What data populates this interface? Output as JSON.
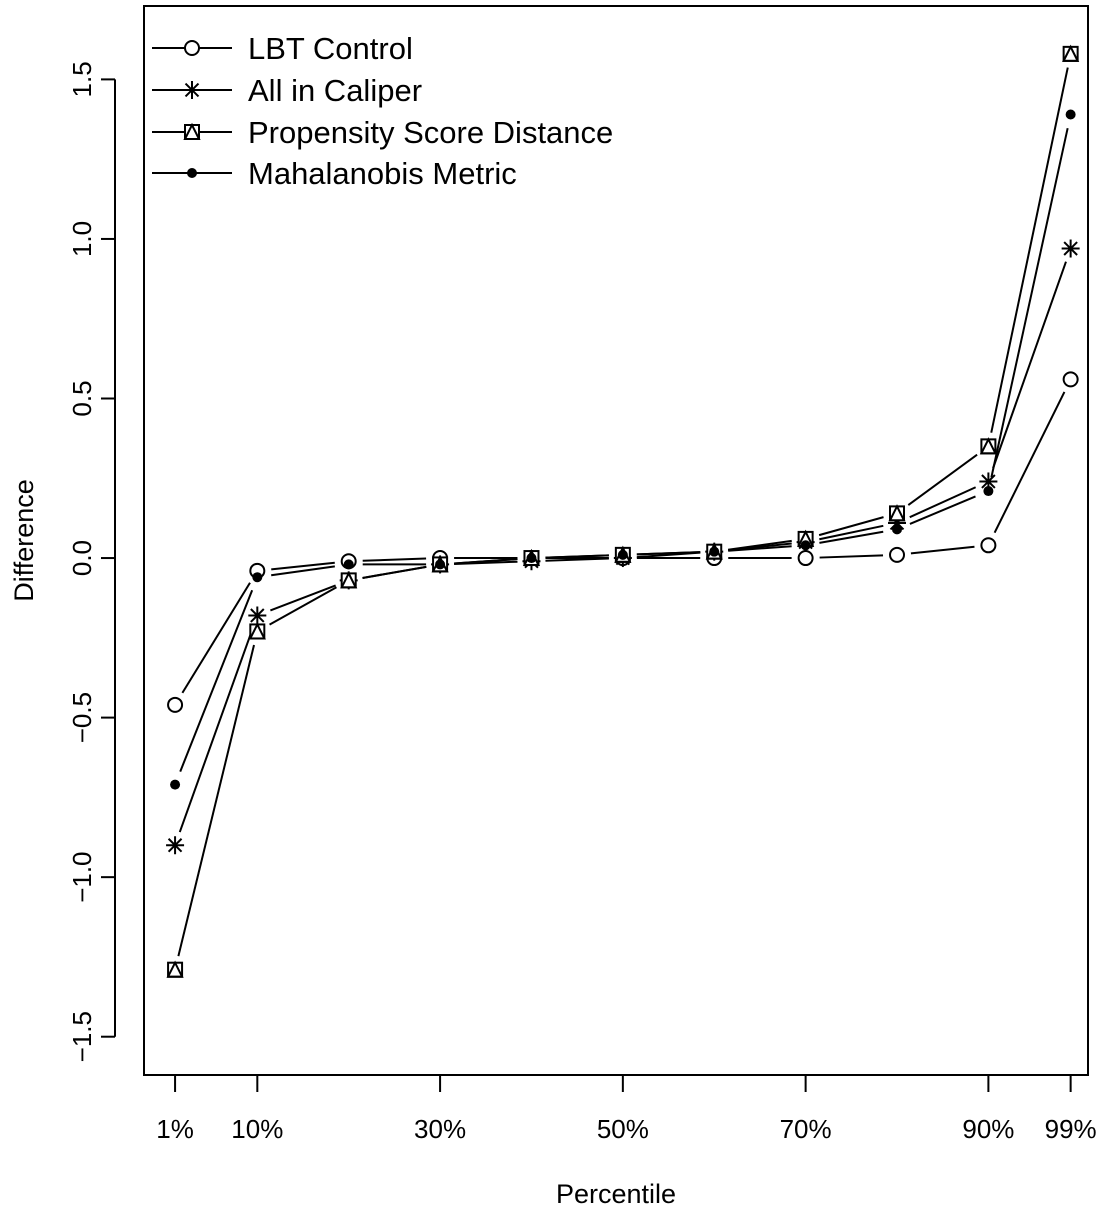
{
  "chart_data": {
    "type": "line",
    "title": "",
    "xlabel": "Percentile",
    "ylabel": "Difference",
    "x": [
      1,
      10,
      20,
      30,
      40,
      50,
      60,
      70,
      80,
      90,
      99
    ],
    "xticks": [
      1,
      10,
      30,
      50,
      70,
      90,
      99
    ],
    "xtick_labels": [
      "1%",
      "10%",
      "30%",
      "50%",
      "70%",
      "90%",
      "99%"
    ],
    "yticks": [
      -1.5,
      -1.0,
      -0.5,
      0.0,
      0.5,
      1.0,
      1.5
    ],
    "ytick_labels": [
      "−1.5",
      "−1.0",
      "−0.5",
      "0.0",
      "0.5",
      "1.0",
      "1.5"
    ],
    "xlim": [
      -2.4,
      100.9
    ],
    "ylim": [
      -1.62,
      1.73
    ],
    "grid": false,
    "legend_position": "top-left",
    "series": [
      {
        "name": "LBT Control",
        "marker": "open-circle",
        "values": [
          -0.46,
          -0.04,
          -0.01,
          0.0,
          0.0,
          0.0,
          0.0,
          0.0,
          0.01,
          0.04,
          0.56
        ]
      },
      {
        "name": "All in Caliper",
        "marker": "asterisk",
        "values": [
          -0.9,
          -0.18,
          -0.07,
          -0.02,
          -0.01,
          0.0,
          0.02,
          0.05,
          0.11,
          0.24,
          0.97
        ]
      },
      {
        "name": "Propensity Score Distance",
        "marker": "square-triangle",
        "values": [
          -1.29,
          -0.23,
          -0.07,
          -0.02,
          0.0,
          0.01,
          0.02,
          0.06,
          0.14,
          0.35,
          1.58
        ]
      },
      {
        "name": "Mahalanobis Metric",
        "marker": "filled-dot",
        "values": [
          -0.71,
          -0.06,
          -0.02,
          -0.02,
          0.0,
          0.01,
          0.02,
          0.04,
          0.09,
          0.21,
          1.39
        ]
      }
    ]
  }
}
